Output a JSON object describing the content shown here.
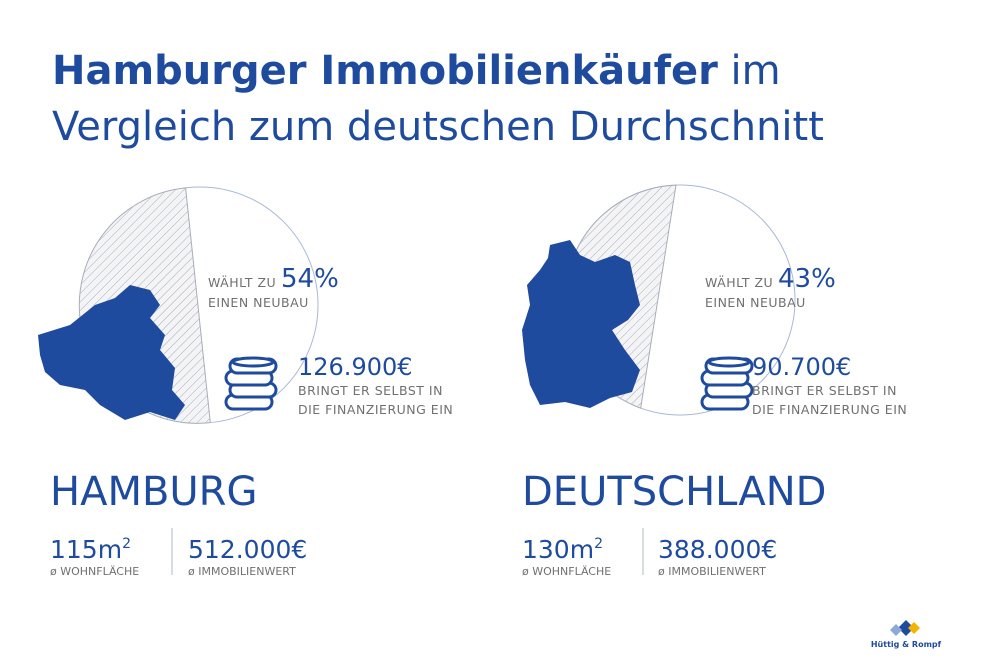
{
  "header": {
    "title_bold": "Hamburger Immobilienkäufer",
    "title_rest": " im",
    "title_line2": "Vergleich zum deutschen Durchschnitt"
  },
  "panels": [
    {
      "region": "HAMBURG",
      "new_build_prefix": "WÄHLT ZU",
      "new_build_share": "54%",
      "new_build_suffix": "EINEN NEUBAU",
      "equity": "126.900€",
      "equity_line1": "BRINGT ER SELBST IN",
      "equity_line2": "DIE FINANZIERUNG EIN",
      "living_space": "115m",
      "living_space_sup": "2",
      "living_space_label": "ø WOHNFLÄCHE",
      "property_value": "512.000€",
      "property_value_label": "ø IMMOBILIENWERT"
    },
    {
      "region": "DEUTSCHLAND",
      "new_build_prefix": "WÄHLT ZU",
      "new_build_share": "43%",
      "new_build_suffix": "EINEN NEUBAU",
      "equity": "90.700€",
      "equity_line1": "BRINGT ER SELBST IN",
      "equity_line2": "DIE FINANZIERUNG EIN",
      "living_space": "130m",
      "living_space_sup": "2",
      "living_space_label": "ø WOHNFLÄCHE",
      "property_value": "388.000€",
      "property_value_label": "ø IMMOBILIENWERT"
    }
  ],
  "footer": {
    "logo": "Hüttig & Rompf"
  }
}
